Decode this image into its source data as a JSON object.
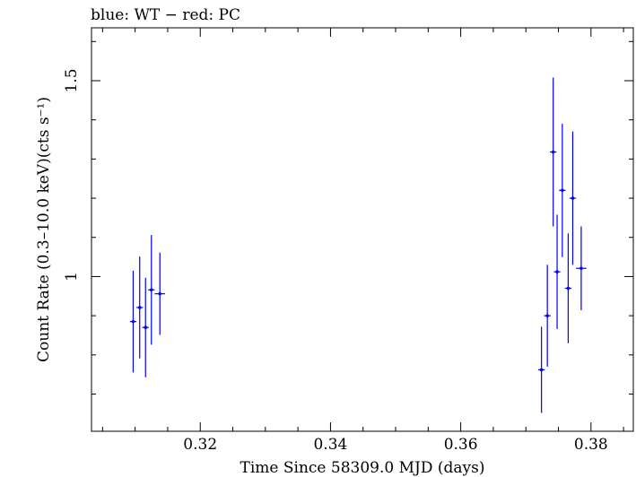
{
  "chart_data": {
    "type": "scatter",
    "title": "blue: WT − red: PC",
    "xlabel": "Time Since 58309.0 MJD (days)",
    "ylabel": "Count Rate (0.3–10.0 keV)(cts s⁻¹)",
    "xlim": [
      0.3033,
      0.3865
    ],
    "ylim": [
      0.605,
      1.635
    ],
    "x_ticks": [
      0.32,
      0.34,
      0.36,
      0.38
    ],
    "x_tick_labels": [
      "0.32",
      "0.34",
      "0.36",
      "0.38"
    ],
    "y_ticks": [
      1.0,
      1.5
    ],
    "y_tick_labels": [
      "1",
      "1.5"
    ],
    "series": [
      {
        "name": "WT",
        "color": "#0000ff",
        "points": [
          {
            "x": 0.3097,
            "y": 0.885,
            "xerr": 0.0005,
            "yerr_low": 0.13,
            "yerr_high": 0.13
          },
          {
            "x": 0.3107,
            "y": 0.921,
            "xerr": 0.0005,
            "yerr_low": 0.13,
            "yerr_high": 0.13
          },
          {
            "x": 0.3116,
            "y": 0.87,
            "xerr": 0.0005,
            "yerr_low": 0.127,
            "yerr_high": 0.127
          },
          {
            "x": 0.3125,
            "y": 0.966,
            "xerr": 0.0005,
            "yerr_low": 0.14,
            "yerr_high": 0.14
          },
          {
            "x": 0.3138,
            "y": 0.956,
            "xerr": 0.0008,
            "yerr_low": 0.105,
            "yerr_high": 0.105
          },
          {
            "x": 0.3724,
            "y": 0.762,
            "xerr": 0.0005,
            "yerr_low": 0.11,
            "yerr_high": 0.11
          },
          {
            "x": 0.3733,
            "y": 0.9,
            "xerr": 0.0005,
            "yerr_low": 0.13,
            "yerr_high": 0.13
          },
          {
            "x": 0.3742,
            "y": 1.318,
            "xerr": 0.0005,
            "yerr_low": 0.19,
            "yerr_high": 0.19
          },
          {
            "x": 0.3748,
            "y": 1.012,
            "xerr": 0.0005,
            "yerr_low": 0.146,
            "yerr_high": 0.146
          },
          {
            "x": 0.3756,
            "y": 1.22,
            "xerr": 0.0005,
            "yerr_low": 0.17,
            "yerr_high": 0.17
          },
          {
            "x": 0.3765,
            "y": 0.97,
            "xerr": 0.0005,
            "yerr_low": 0.14,
            "yerr_high": 0.14
          },
          {
            "x": 0.3772,
            "y": 1.2,
            "xerr": 0.0005,
            "yerr_low": 0.17,
            "yerr_high": 0.17
          },
          {
            "x": 0.3785,
            "y": 1.021,
            "xerr": 0.0008,
            "yerr_low": 0.107,
            "yerr_high": 0.107
          }
        ]
      }
    ],
    "grid": false,
    "legend": "none"
  }
}
